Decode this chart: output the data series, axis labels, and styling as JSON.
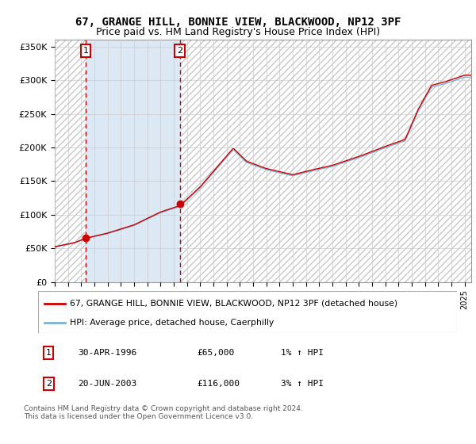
{
  "title": "67, GRANGE HILL, BONNIE VIEW, BLACKWOOD, NP12 3PF",
  "subtitle": "Price paid vs. HM Land Registry's House Price Index (HPI)",
  "ylim": [
    0,
    360000
  ],
  "yticks": [
    0,
    50000,
    100000,
    150000,
    200000,
    250000,
    300000,
    350000
  ],
  "ytick_labels": [
    "£0",
    "£50K",
    "£100K",
    "£150K",
    "£200K",
    "£250K",
    "£300K",
    "£350K"
  ],
  "xlim_start": 1994.0,
  "xlim_end": 2025.5,
  "purchase1_date": 1996.33,
  "purchase1_price": 65000,
  "purchase2_date": 2003.47,
  "purchase2_price": 116000,
  "shade_color": "#dce9f5",
  "hpi_line_color": "#7ab3d4",
  "price_line_color": "#cc0000",
  "dot_color": "#cc0000",
  "dashed_line_color": "#cc0000",
  "grid_color": "#cccccc",
  "legend_label1": "67, GRANGE HILL, BONNIE VIEW, BLACKWOOD, NP12 3PF (detached house)",
  "legend_label2": "HPI: Average price, detached house, Caerphilly",
  "table_row1": [
    "1",
    "30-APR-1996",
    "£65,000",
    "1% ↑ HPI"
  ],
  "table_row2": [
    "2",
    "20-JUN-2003",
    "£116,000",
    "3% ↑ HPI"
  ],
  "footer": "Contains HM Land Registry data © Crown copyright and database right 2024.\nThis data is licensed under the Open Government Licence v3.0.",
  "title_fontsize": 10,
  "subtitle_fontsize": 9
}
